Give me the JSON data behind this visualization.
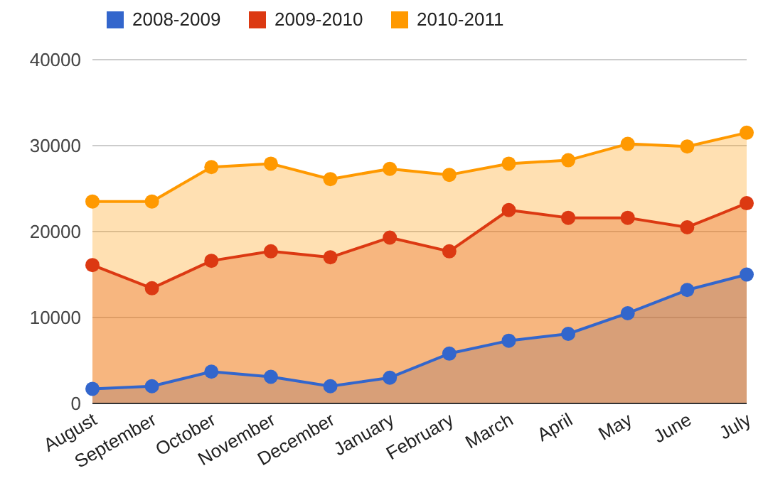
{
  "chart_data": {
    "type": "area",
    "categories": [
      "August",
      "September",
      "October",
      "November",
      "December",
      "January",
      "February",
      "March",
      "April",
      "May",
      "June",
      "July"
    ],
    "series": [
      {
        "name": "2008-2009",
        "color": "#3366cc",
        "values": [
          1700,
          2000,
          3700,
          3100,
          2000,
          3000,
          5800,
          7300,
          8100,
          10500,
          13200,
          15000
        ]
      },
      {
        "name": "2009-2010",
        "color": "#dc3912",
        "values": [
          16100,
          13400,
          16600,
          17700,
          17000,
          19300,
          17700,
          22500,
          21600,
          21600,
          20500,
          23300
        ]
      },
      {
        "name": "2010-2011",
        "color": "#ff9900",
        "values": [
          23500,
          23500,
          27500,
          27900,
          26100,
          27300,
          26600,
          27900,
          28300,
          30200,
          29900,
          31500
        ]
      }
    ],
    "ylim": [
      0,
      40000
    ],
    "yticks": [
      0,
      10000,
      20000,
      30000,
      40000
    ],
    "grid": "y",
    "legend": "top left",
    "marker": "circle"
  }
}
